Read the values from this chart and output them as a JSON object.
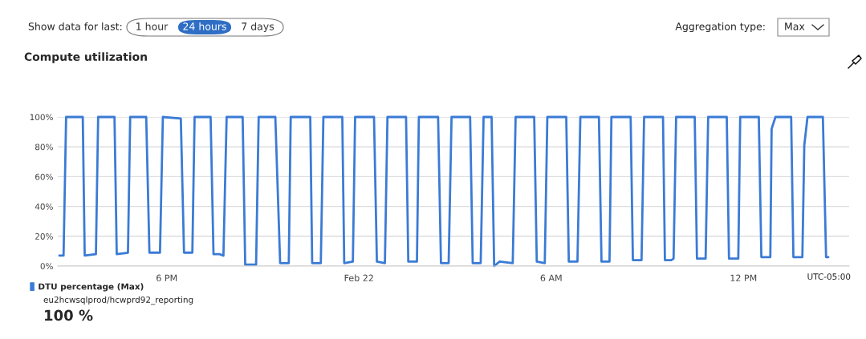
{
  "chart_data": {
    "type": "line",
    "title": "Compute utilization",
    "x": [
      -9.35,
      -9.22,
      -9.14,
      -8.62,
      -8.56,
      -8.21,
      -8.14,
      -7.63,
      -7.56,
      -7.21,
      -7.14,
      -6.64,
      -6.54,
      -6.21,
      -6.12,
      -5.56,
      -5.46,
      -5.2,
      -5.13,
      -4.63,
      -4.54,
      -4.35,
      -4.23,
      -4.13,
      -3.63,
      -3.55,
      -3.21,
      -3.13,
      -2.61,
      -2.46,
      -2.19,
      -2.13,
      -1.52,
      -1.46,
      -1.19,
      -1.11,
      -0.52,
      -0.46,
      -0.19,
      -0.12,
      0.47,
      0.56,
      0.81,
      0.89,
      1.47,
      1.54,
      1.81,
      1.87,
      2.47,
      2.56,
      2.8,
      2.89,
      3.47,
      3.55,
      3.8,
      3.89,
      4.14,
      4.22,
      4.39,
      4.8,
      4.89,
      5.47,
      5.55,
      5.8,
      5.88,
      6.47,
      6.55,
      6.82,
      6.91,
      7.49,
      7.57,
      7.82,
      7.88,
      8.48,
      8.55,
      8.82,
      8.9,
      9.49,
      9.55,
      9.75,
      9.82,
      9.9,
      10.48,
      10.55,
      10.82,
      10.9,
      11.48,
      11.55,
      11.84,
      11.9,
      12.48,
      12.56,
      12.84,
      12.88,
      13.0,
      13.49,
      13.56,
      13.84,
      13.9,
      14.0,
      14.48,
      14.58,
      14.65
    ],
    "series": [
      {
        "name": "DTU percentage (Max)",
        "color": "#3a7bd5",
        "values": [
          7,
          7,
          100,
          100,
          7,
          8,
          100,
          100,
          8,
          9,
          100,
          100,
          9,
          9,
          100,
          99,
          9,
          9,
          100,
          100,
          8,
          8,
          7,
          100,
          100,
          1,
          1,
          100,
          100,
          2,
          2,
          100,
          100,
          2,
          2,
          100,
          100,
          2,
          3,
          100,
          100,
          3,
          2,
          100,
          100,
          3,
          3,
          100,
          100,
          2,
          2,
          100,
          100,
          2,
          2,
          100,
          100,
          0,
          3,
          2,
          100,
          100,
          3,
          2,
          100,
          100,
          3,
          3,
          100,
          100,
          3,
          3,
          100,
          100,
          4,
          4,
          100,
          100,
          4,
          4,
          5,
          100,
          100,
          5,
          5,
          100,
          100,
          5,
          5,
          100,
          100,
          6,
          6,
          92,
          100,
          100,
          6,
          6,
          81,
          100,
          100,
          6,
          6
        ]
      }
    ],
    "xlim": [
      -9.4,
      15.3
    ],
    "xticks": [
      {
        "value": -6,
        "label": "6 PM"
      },
      {
        "value": 0,
        "label": "Feb 22"
      },
      {
        "value": 6,
        "label": "6 AM"
      },
      {
        "value": 12,
        "label": "12 PM"
      }
    ],
    "ylim": [
      0,
      100
    ],
    "yticks": [
      {
        "value": 0,
        "label": "0%"
      },
      {
        "value": 20,
        "label": "20%"
      },
      {
        "value": 40,
        "label": "40%"
      },
      {
        "value": 60,
        "label": "60%"
      },
      {
        "value": 80,
        "label": "80%"
      },
      {
        "value": 100,
        "label": "100%"
      }
    ],
    "grid": "y",
    "legend": "bottom left",
    "line_style": "solid",
    "annotations": [
      "Show data for last:",
      "1 hour",
      "24 hours",
      "7 days",
      "Aggregation type:",
      "Max",
      "UTC-05:00",
      "eu2hcwsqlprod/hcwprd92_reporting",
      "100 %"
    ]
  }
}
